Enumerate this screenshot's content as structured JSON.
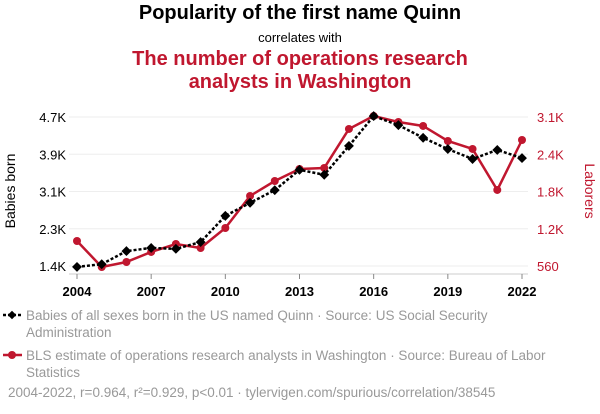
{
  "title": "Popularity of the first name Quinn",
  "subtitle": "correlates with",
  "title2_line1": "The number of operations research",
  "title2_line2": "analysts in Washington",
  "legend": [
    "Babies of all sexes born in the US named Quinn · Source: US Social Security Administration",
    "BLS estimate of operations research analysts in Washington · Source: Bureau of Labor Statistics"
  ],
  "footer": "2004-2022, r=0.964, r²=0.929, p<0.01 · tylervigen.com/spurious/correlation/38545",
  "colors": {
    "series1": "#000000",
    "series2": "#c0172f"
  },
  "chart_data": {
    "type": "line",
    "x": [
      2004,
      2005,
      2006,
      2007,
      2008,
      2009,
      2010,
      2011,
      2012,
      2013,
      2014,
      2015,
      2016,
      2017,
      2018,
      2019,
      2020,
      2021,
      2022
    ],
    "xticks": [
      "2004",
      "2007",
      "2010",
      "2013",
      "2016",
      "2019",
      "2022"
    ],
    "ylabel_left": "Babies born",
    "ylabel_right": "Laborers",
    "yticks_left": [
      "4.7K",
      "3.9K",
      "3.1K",
      "2.3K",
      "1.4K"
    ],
    "yticks_right": [
      "3.1K",
      "2.4K",
      "1.8K",
      "1.2K",
      "560"
    ],
    "ylim_left": [
      1400,
      4700
    ],
    "ylim_right": [
      560,
      3100
    ],
    "series": [
      {
        "name": "Babies of all sexes born in the US named Quinn",
        "axis": "left",
        "values": [
          1380,
          1440,
          1730,
          1800,
          1780,
          1930,
          2510,
          2800,
          3080,
          3530,
          3420,
          4060,
          4720,
          4520,
          4240,
          3990,
          3770,
          3970,
          3790
        ]
      },
      {
        "name": "BLS estimate of operations research analysts in Washington",
        "axis": "right",
        "values": [
          986,
          543,
          628,
          799,
          935,
          867,
          1208,
          1754,
          2009,
          2214,
          2231,
          2896,
          3117,
          3015,
          2947,
          2691,
          2555,
          1856,
          2708
        ]
      }
    ]
  }
}
